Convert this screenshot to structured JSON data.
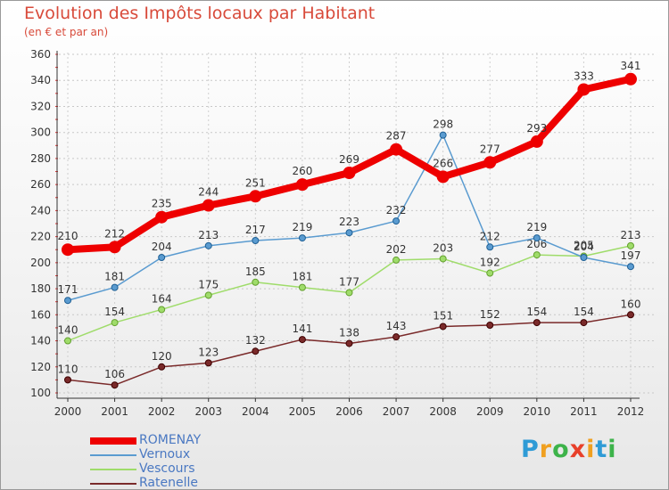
{
  "header": {
    "title": "Evolution des Impôts locaux par Habitant",
    "subtitle": "(en € et par an)"
  },
  "logo": {
    "letters": [
      "P",
      "r",
      "o",
      "x",
      "i",
      "t",
      "i"
    ],
    "colors": [
      "#2f9bd6",
      "#f0a020",
      "#3db34a",
      "#e8402a",
      "#f0a020",
      "#2f9bd6",
      "#3db34a"
    ]
  },
  "chart_data": {
    "type": "line",
    "x": [
      "2000",
      "2001",
      "2002",
      "2003",
      "2004",
      "2005",
      "2006",
      "2007",
      "2008",
      "2009",
      "2010",
      "2011",
      "2012"
    ],
    "ylim": [
      100,
      360
    ],
    "yticks": [
      100,
      120,
      140,
      160,
      180,
      200,
      220,
      240,
      260,
      280,
      300,
      320,
      340,
      360
    ],
    "grid": true,
    "legend_position": "bottom-left",
    "series": [
      {
        "name": "ROMENAY",
        "color": "#ee0000",
        "values": [
          210,
          212,
          235,
          244,
          251,
          260,
          269,
          287,
          266,
          277,
          293,
          333,
          341
        ]
      },
      {
        "name": "Vernoux",
        "color": "#5a9bd0",
        "values": [
          171,
          181,
          204,
          213,
          217,
          219,
          223,
          232,
          298,
          212,
          219,
          204,
          197
        ]
      },
      {
        "name": "Vescours",
        "color": "#9fdc6a",
        "values": [
          140,
          154,
          164,
          175,
          185,
          181,
          177,
          202,
          203,
          192,
          206,
          205,
          213
        ]
      },
      {
        "name": "Ratenelle",
        "color": "#7a2a2a",
        "values": [
          110,
          106,
          120,
          123,
          132,
          141,
          138,
          143,
          151,
          152,
          154,
          154,
          160
        ]
      }
    ]
  }
}
